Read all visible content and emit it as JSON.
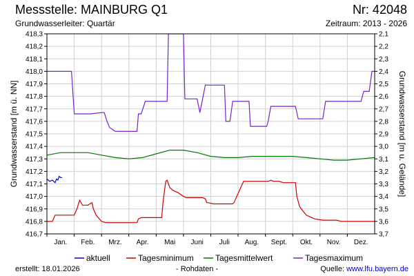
{
  "header": {
    "title": "Messstelle: MAINBURG Q1",
    "number": "Nr: 42048",
    "aquifer": "Grundwasserleiter: Quartär",
    "period": "Zeitraum: 2013 - 2026"
  },
  "footer": {
    "created": "erstellt:  18.01.2026",
    "raw": "- Rohdaten -",
    "source_label": "Quelle: ",
    "source_link": "www.lfu.bayern.de"
  },
  "chart_data": {
    "type": "line",
    "ylabel": "Grundwasserstand [m ü. NN]",
    "ylabel_right": "Grundwasserstand [m u. Gelände]",
    "ylim": [
      416.7,
      418.3
    ],
    "ylim_right": [
      3.7,
      2.1
    ],
    "yticks": [
      "416,7",
      "416,8",
      "416,9",
      "417,0",
      "417,1",
      "417,2",
      "417,3",
      "417,4",
      "417,5",
      "417,6",
      "417,7",
      "417,8",
      "417,9",
      "418,0",
      "418,1",
      "418,2",
      "418,3"
    ],
    "yticks_right": [
      "3,7",
      "3,6",
      "3,5",
      "3,4",
      "3,3",
      "3,2",
      "3,1",
      "3,0",
      "2,9",
      "2,8",
      "2,7",
      "2,6",
      "2,5",
      "2,4",
      "2,3",
      "2,2",
      "2,1"
    ],
    "xlim": [
      0,
      12
    ],
    "months": [
      "Jan.",
      "Feb.",
      "Mrz.",
      "Apr.",
      "Mai",
      "Juni",
      "Juli",
      "Aug.",
      "Sept.",
      "Okt.",
      "Nov.",
      "Dez."
    ],
    "grid": true,
    "legend_position": "bottom",
    "series": [
      {
        "name": "aktuell",
        "color": "#0000cc",
        "x": [
          0,
          0.1,
          0.2,
          0.3,
          0.35,
          0.4,
          0.45,
          0.5,
          0.55
        ],
        "y": [
          417.14,
          417.12,
          417.13,
          417.11,
          417.14,
          417.13,
          417.16,
          417.15,
          417.15
        ]
      },
      {
        "name": "Tagesminimum",
        "color": "#cc0000",
        "x": [
          0,
          0.2,
          0.3,
          1.0,
          1.1,
          1.2,
          1.3,
          1.5,
          1.65,
          1.7,
          1.8,
          2.0,
          2.15,
          2.25,
          2.35,
          2.5,
          2.6,
          2.9,
          3.1,
          3.3,
          3.35,
          3.45,
          3.6,
          3.9,
          4.2,
          4.25,
          4.35,
          4.4,
          4.5,
          4.55,
          4.6,
          4.8,
          5.0,
          5.1,
          5.3,
          5.5,
          5.7,
          5.8,
          5.85,
          5.9,
          6.1,
          6.5,
          6.8,
          6.85,
          7.2,
          7.4,
          7.6,
          8.1,
          8.2,
          8.3,
          8.5,
          8.65,
          8.8,
          9.1,
          9.15,
          9.25,
          9.35,
          9.5,
          9.8,
          10.1,
          10.4,
          10.6,
          10.8,
          11.2,
          11.5,
          11.8,
          12.0
        ],
        "y": [
          416.8,
          416.8,
          416.85,
          416.85,
          416.9,
          416.97,
          416.93,
          416.93,
          416.95,
          416.9,
          416.85,
          416.8,
          416.79,
          416.79,
          416.79,
          416.79,
          416.79,
          416.79,
          416.79,
          416.79,
          416.82,
          416.83,
          416.83,
          416.83,
          416.83,
          416.95,
          417.12,
          417.13,
          417.07,
          417.06,
          417.05,
          417.03,
          417.0,
          416.99,
          416.99,
          416.99,
          416.99,
          416.98,
          416.95,
          416.95,
          416.94,
          416.94,
          416.94,
          416.95,
          417.12,
          417.12,
          417.12,
          417.12,
          417.13,
          417.12,
          417.12,
          417.11,
          417.11,
          417.11,
          417.0,
          416.92,
          416.89,
          416.85,
          416.82,
          416.81,
          416.81,
          416.81,
          416.8,
          416.8,
          416.8,
          416.8,
          416.8
        ]
      },
      {
        "name": "Tagesmittelwert",
        "color": "#007700",
        "x": [
          0,
          0.5,
          1.0,
          1.5,
          2.0,
          2.5,
          3.0,
          3.5,
          4.0,
          4.5,
          5.0,
          5.5,
          6.0,
          6.5,
          7.0,
          7.5,
          8.0,
          8.5,
          9.0,
          9.5,
          10.0,
          10.5,
          11.0,
          11.5,
          12.0
        ],
        "y": [
          417.33,
          417.35,
          417.35,
          417.35,
          417.33,
          417.31,
          417.3,
          417.31,
          417.34,
          417.37,
          417.37,
          417.35,
          417.32,
          417.31,
          417.31,
          417.32,
          417.32,
          417.32,
          417.32,
          417.31,
          417.3,
          417.29,
          417.29,
          417.3,
          417.31
        ]
      },
      {
        "name": "Tagesmaximum",
        "color": "#7722cc",
        "x": [
          0,
          0.9,
          1.0,
          1.5,
          1.6,
          2.0,
          2.1,
          2.2,
          2.3,
          2.5,
          2.7,
          2.9,
          3.1,
          3.3,
          3.35,
          3.45,
          3.6,
          4.4,
          4.45,
          4.6,
          5.0,
          5.05,
          5.3,
          5.5,
          5.6,
          5.8,
          6.5,
          6.55,
          6.7,
          6.8,
          7.4,
          7.45,
          7.6,
          8.05,
          8.1,
          8.2,
          8.5,
          8.6,
          8.7,
          9.1,
          9.2,
          10.1,
          10.2,
          10.6,
          10.7,
          11.5,
          11.6,
          11.8,
          11.9,
          12.0
        ],
        "y": [
          418.0,
          418.0,
          417.66,
          417.66,
          417.66,
          417.67,
          417.67,
          417.6,
          417.55,
          417.52,
          417.52,
          417.52,
          417.52,
          417.52,
          417.66,
          417.66,
          417.76,
          417.76,
          418.3,
          418.3,
          418.3,
          417.78,
          417.78,
          417.78,
          417.67,
          417.89,
          417.89,
          417.6,
          417.6,
          417.76,
          417.76,
          417.56,
          417.56,
          417.56,
          417.6,
          417.72,
          417.72,
          417.72,
          417.72,
          417.72,
          417.62,
          417.62,
          417.76,
          417.76,
          417.76,
          417.76,
          417.84,
          417.84,
          418.0,
          418.0
        ]
      }
    ]
  }
}
